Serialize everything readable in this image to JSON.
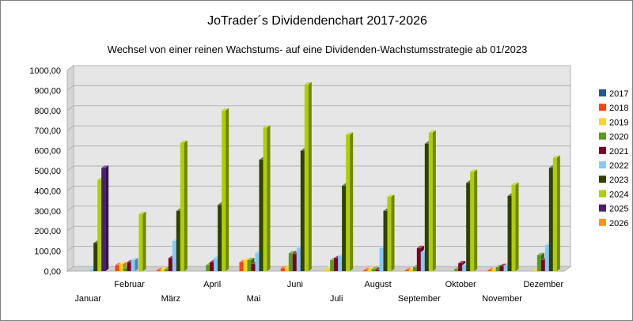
{
  "chart_data": {
    "type": "bar",
    "title": "JoTrader´s Dividendenchart 2017-2026",
    "subtitle": "Wechsel von einer reinen Wachstums- auf eine Dividenden-Wachstumsstrategie ab 01/2023",
    "categories": [
      "Januar",
      "Februar",
      "März",
      "April",
      "Mai",
      "Juni",
      "Juli",
      "August",
      "September",
      "Oktober",
      "November",
      "Dezember"
    ],
    "y_ticks": [
      "0,00",
      "100,00",
      "200,00",
      "300,00",
      "400,00",
      "500,00",
      "600,00",
      "700,00",
      "800,00",
      "900,00",
      "1000,00"
    ],
    "ylim": [
      0,
      1000
    ],
    "grid": true,
    "legend_position": "right",
    "series": [
      {
        "name": "2017",
        "color": "#1f5a9a",
        "values": [
          0,
          0,
          0,
          0,
          0,
          0,
          0,
          0,
          0,
          0,
          0,
          0
        ]
      },
      {
        "name": "2018",
        "color": "#ff420e",
        "values": [
          0,
          30,
          5,
          0,
          45,
          15,
          0,
          5,
          5,
          0,
          5,
          0
        ]
      },
      {
        "name": "2019",
        "color": "#ffd320",
        "values": [
          0,
          35,
          10,
          0,
          55,
          20,
          15,
          10,
          10,
          0,
          10,
          5
        ]
      },
      {
        "name": "2020",
        "color": "#579d1c",
        "values": [
          0,
          15,
          10,
          30,
          55,
          90,
          55,
          10,
          20,
          10,
          20,
          80
        ]
      },
      {
        "name": "2021",
        "color": "#7e0021",
        "values": [
          0,
          45,
          65,
          45,
          35,
          85,
          65,
          5,
          115,
          40,
          25,
          55
        ]
      },
      {
        "name": "2022",
        "color": "#83caff",
        "values": [
          10,
          55,
          150,
          65,
          90,
          115,
          75,
          115,
          95,
          30,
          25,
          130
        ]
      },
      {
        "name": "2023",
        "color": "#314004",
        "values": [
          140,
          0,
          300,
          330,
          555,
          600,
          425,
          300,
          635,
          440,
          375,
          515
        ]
      },
      {
        "name": "2024",
        "color": "#aecf00",
        "values": [
          455,
          285,
          640,
          800,
          715,
          930,
          680,
          370,
          690,
          495,
          430,
          565
        ]
      },
      {
        "name": "2025",
        "color": "#4b1f6f",
        "values": [
          515,
          0,
          0,
          0,
          0,
          0,
          0,
          0,
          0,
          0,
          0,
          0
        ]
      },
      {
        "name": "2026",
        "color": "#ff950e",
        "values": [
          0,
          0,
          0,
          0,
          0,
          0,
          0,
          0,
          0,
          0,
          0,
          0
        ]
      }
    ]
  }
}
